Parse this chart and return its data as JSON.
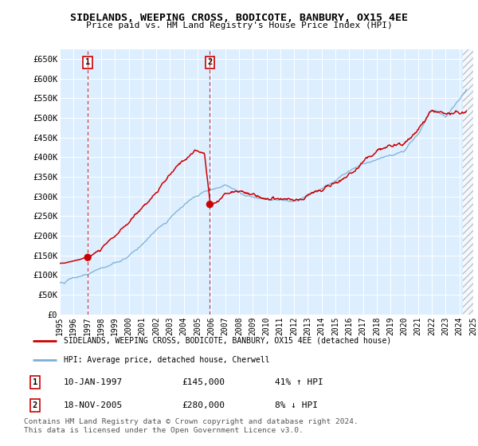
{
  "title": "SIDELANDS, WEEPING CROSS, BODICOTE, BANBURY, OX15 4EE",
  "subtitle": "Price paid vs. HM Land Registry's House Price Index (HPI)",
  "ylim": [
    0,
    675000
  ],
  "yticks": [
    0,
    50000,
    100000,
    150000,
    200000,
    250000,
    300000,
    350000,
    400000,
    450000,
    500000,
    550000,
    600000,
    650000
  ],
  "ytick_labels": [
    "£0",
    "£50K",
    "£100K",
    "£150K",
    "£200K",
    "£250K",
    "£300K",
    "£350K",
    "£400K",
    "£450K",
    "£500K",
    "£550K",
    "£600K",
    "£650K"
  ],
  "xmin_year": 1995,
  "xmax_year": 2025,
  "xticks": [
    1995,
    1996,
    1997,
    1998,
    1999,
    2000,
    2001,
    2002,
    2003,
    2004,
    2005,
    2006,
    2007,
    2008,
    2009,
    2010,
    2011,
    2012,
    2013,
    2014,
    2015,
    2016,
    2017,
    2018,
    2019,
    2020,
    2021,
    2022,
    2023,
    2024,
    2025
  ],
  "sale1_x": 1997.03,
  "sale1_y": 145000,
  "sale1_label": "1",
  "sale1_date": "10-JAN-1997",
  "sale1_price": "£145,000",
  "sale1_hpi": "41% ↑ HPI",
  "sale2_x": 2005.89,
  "sale2_y": 280000,
  "sale2_label": "2",
  "sale2_date": "18-NOV-2005",
  "sale2_price": "£280,000",
  "sale2_hpi": "8% ↓ HPI",
  "legend_line1": "SIDELANDS, WEEPING CROSS, BODICOTE, BANBURY, OX15 4EE (detached house)",
  "legend_line2": "HPI: Average price, detached house, Cherwell",
  "footer": "Contains HM Land Registry data © Crown copyright and database right 2024.\nThis data is licensed under the Open Government Licence v3.0.",
  "red_color": "#cc0000",
  "blue_color": "#7ab0d4",
  "plot_bg": "#ddeeff"
}
